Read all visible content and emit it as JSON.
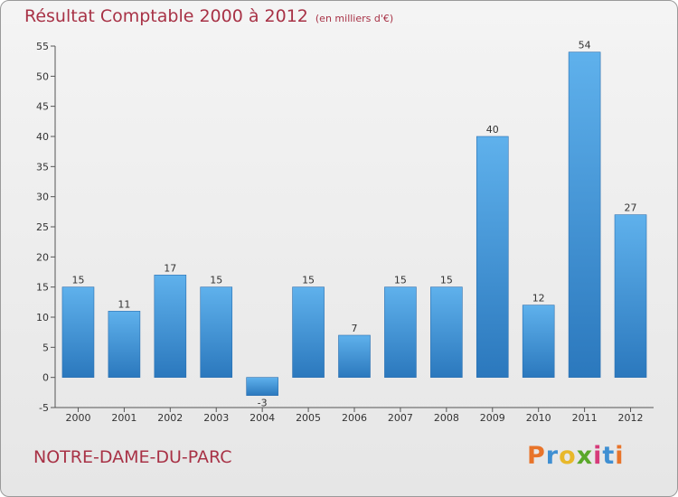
{
  "title": "Résultat Comptable 2000 à 2012",
  "unit": "(en milliers d'€)",
  "commune": "NOTRE-DAME-DU-PARC",
  "brand": {
    "letters": [
      "P",
      "r",
      "o",
      "x",
      "i",
      "t",
      "i"
    ],
    "colors": [
      "#e8742a",
      "#3f8fd2",
      "#e8b82a",
      "#5aa82a",
      "#d63b7a",
      "#3f8fd2",
      "#e8742a"
    ]
  },
  "colors": {
    "bar": "#3d8fd4",
    "bar_light": "#5fb1ec",
    "title": "#a83246"
  },
  "chart_data": {
    "type": "bar",
    "title": "Résultat Comptable 2000 à 2012",
    "ylabel": "(en milliers d'€)",
    "xlabel": "",
    "categories": [
      "2000",
      "2001",
      "2002",
      "2003",
      "2004",
      "2005",
      "2006",
      "2007",
      "2008",
      "2009",
      "2010",
      "2011",
      "2012"
    ],
    "values": [
      15,
      11,
      17,
      15,
      -3,
      15,
      7,
      15,
      15,
      40,
      12,
      54,
      27
    ],
    "ylim": [
      -5,
      55
    ],
    "yticks": [
      -5,
      0,
      5,
      10,
      15,
      20,
      25,
      30,
      35,
      40,
      45,
      50,
      55
    ],
    "grid": false,
    "legend": "none"
  }
}
